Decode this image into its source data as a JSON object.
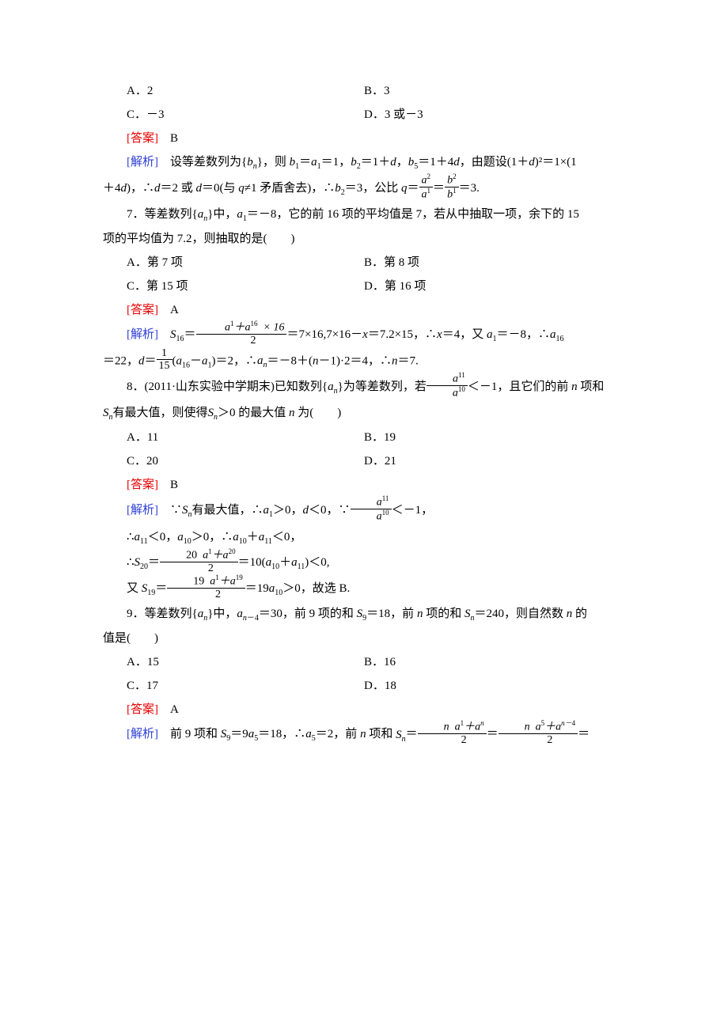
{
  "q6": {
    "optA": "A．2",
    "optB": "B．3",
    "optC": "C．－3",
    "optD": "D．3 或－3",
    "ans_label": "[答案]",
    "ans": "　B",
    "expl_label": "[解析]",
    "expl1_a": "　设等差数列为{",
    "expl1_b": "}，则 ",
    "expl1_c": "，由题设(1＋",
    "expl1_d": ")²＝1×(1",
    "expl2_a": "＋4",
    "expl2_b": ")，∴",
    "expl2_c": "＝2 或 ",
    "expl2_d": "＝0(与 ",
    "expl2_e": "≠1 矛盾舍去)，∴",
    "expl2_f": "＝3，公比 ",
    "expl2_g": "＝",
    "expl2_h": "＝",
    "expl2_i": "＝3."
  },
  "q7": {
    "stem_a": "7．等差数列{",
    "stem_b": "}中，",
    "stem_c": "＝－8，它的前 16 项的平均值是 7，若从中抽取一项，余下的 15",
    "stem2": "项的平均值为 7.2，则抽取的是(　　)",
    "optA": "A．第 7 项",
    "optB": "B．第 8 项",
    "optC": "C．第 15 项",
    "optD": "D．第 16 项",
    "ans_label": "[答案]",
    "ans": "　A",
    "expl_label": "[解析]",
    "e1a": "＝",
    "e1b": "＝7×16,7×16－",
    "e1c": "＝7.2×15，∴",
    "e1d": "＝4，又 ",
    "e1e": "＝－8，∴",
    "e2a": "＝22，",
    "e2b": "＝",
    "e2c": "(",
    "e2d": "－",
    "e2e": ")＝2，∴",
    "e2f": "＝－8＋(",
    "e2g": "－1)·2＝4，∴",
    "e2h": "＝7."
  },
  "q8": {
    "stem_a": "8．(2011·山东实验中学期末)已知数列{",
    "stem_b": "}为等差数列，若",
    "stem_c": "＜－1，且它们的前 ",
    "stem_d": " 项和",
    "stem2_a": "有最大值，则使得",
    "stem2_b": "＞0 的最大值 ",
    "stem2_c": " 为(　　)",
    "optA": "A．11",
    "optB": "B．19",
    "optC": "C．20",
    "optD": "D．21",
    "ans_label": "[答案]",
    "ans": "　B",
    "expl_label": "[解析]",
    "e1a": "　∵",
    "e1b": "有最大值，∴",
    "e1c": "＞0，",
    "e1d": "＜0，∵",
    "e1e": "＜－1，",
    "e2a": "∴",
    "e2b": "＜0，",
    "e2c": "＞0，∴",
    "e2d": "＋",
    "e2e": "＜0，",
    "e3a": "∴",
    "e3b": "＝",
    "e3c": "＝10(",
    "e3d": "＋",
    "e3e": ")＜0,",
    "e4a": "又 ",
    "e4b": "＝",
    "e4c": "＝19",
    "e4d": "＞0，故选 B."
  },
  "q9": {
    "stem_a": "9．等差数列{",
    "stem_b": "}中，",
    "stem_c": "＝30，前 9 项的和 ",
    "stem_d": "＝18，前 ",
    "stem_e": " 项的和 ",
    "stem_f": "＝240，则自然数 ",
    "stem_g": " 的",
    "stem2": "值是(　　)",
    "optA": "A．15",
    "optB": "B．16",
    "optC": "C．17",
    "optD": "D．18",
    "ans_label": "[答案]",
    "ans": "　A",
    "expl_label": "[解析]",
    "e1a": "　前 9 项和 ",
    "e1b": "＝9",
    "e1c": "＝18，∴",
    "e1d": "＝2，前 ",
    "e1e": " 项和 ",
    "e1f": "＝",
    "e1g": "＝",
    "e1h": "＝"
  }
}
